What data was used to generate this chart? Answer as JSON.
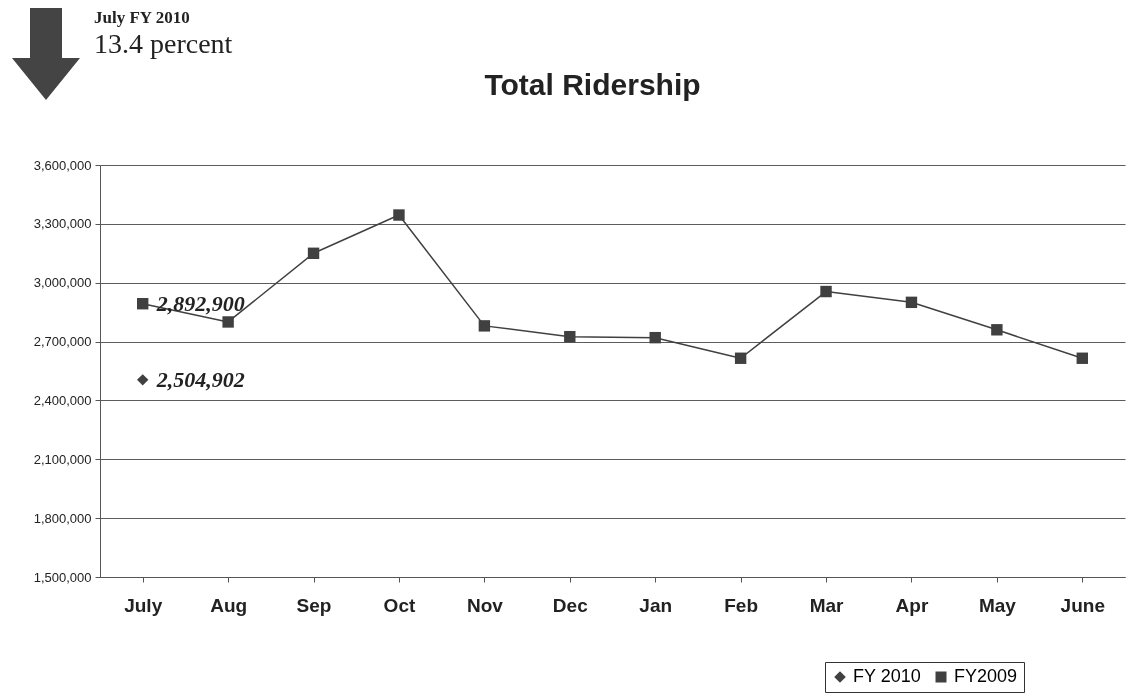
{
  "chart_data": {
    "type": "line",
    "title": "Total Ridership",
    "annotations": [
      "July FY 2010",
      "13.4 percent"
    ],
    "categories": [
      "July",
      "Aug",
      "Sep",
      "Oct",
      "Nov",
      "Dec",
      "Jan",
      "Feb",
      "Mar",
      "Apr",
      "May",
      "June"
    ],
    "series": [
      {
        "name": "FY 2010",
        "color": "#404040",
        "marker": "diamond",
        "values": [
          2504902,
          null,
          null,
          null,
          null,
          null,
          null,
          null,
          null,
          null,
          null,
          null
        ],
        "value_labels": [
          "2,504,902",
          null,
          null,
          null,
          null,
          null,
          null,
          null,
          null,
          null,
          null,
          null
        ]
      },
      {
        "name": "FY2009",
        "color": "#404040",
        "marker": "square",
        "values": [
          2892900,
          2800000,
          3150000,
          3345000,
          2780000,
          2725000,
          2720000,
          2615000,
          2955000,
          2900000,
          2760000,
          2615000
        ],
        "value_labels": [
          "2,892,900",
          null,
          null,
          null,
          null,
          null,
          null,
          null,
          null,
          null,
          null,
          null
        ]
      }
    ],
    "ylim": [
      1500000,
      3600000
    ],
    "yticks": [
      {
        "value": 1500000,
        "label": "1,500,000"
      },
      {
        "value": 1800000,
        "label": "1,800,000"
      },
      {
        "value": 2100000,
        "label": "2,100,000"
      },
      {
        "value": 2400000,
        "label": "2,400,000"
      },
      {
        "value": 2700000,
        "label": "2,700,000"
      },
      {
        "value": 3000000,
        "label": "3,000,000"
      },
      {
        "value": 3300000,
        "label": "3,300,000"
      },
      {
        "value": 3600000,
        "label": "3,600,000"
      }
    ],
    "grid": "y",
    "legend": "bottom right"
  }
}
